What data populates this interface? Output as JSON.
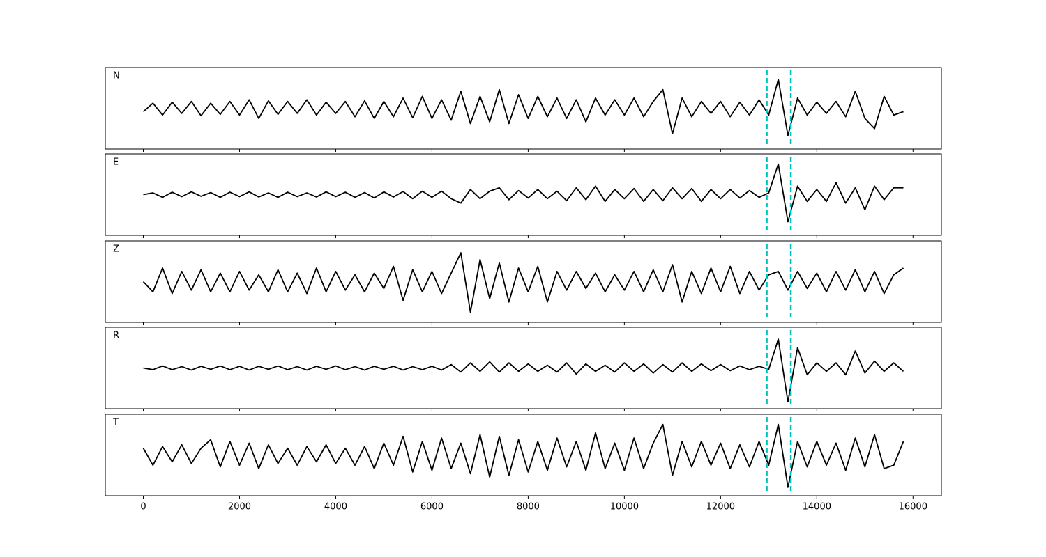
{
  "chart_data": {
    "type": "line",
    "x": [
      0,
      200,
      400,
      600,
      800,
      1000,
      1200,
      1400,
      1600,
      1800,
      2000,
      2200,
      2400,
      2600,
      2800,
      3000,
      3200,
      3400,
      3600,
      3800,
      4000,
      4200,
      4400,
      4600,
      4800,
      5000,
      5200,
      5400,
      5600,
      5800,
      6000,
      6200,
      6400,
      6600,
      6800,
      7000,
      7200,
      7400,
      7600,
      7800,
      8000,
      8200,
      8400,
      8600,
      8800,
      9000,
      9200,
      9400,
      9600,
      9800,
      10000,
      10200,
      10400,
      10600,
      10800,
      11000,
      11200,
      11400,
      11600,
      11800,
      12000,
      12200,
      12400,
      12600,
      12800,
      13000,
      13200,
      13400,
      13600,
      13800,
      14000,
      14200,
      14400,
      14600,
      14800,
      15000,
      15200,
      15400,
      15600,
      15800
    ],
    "xlim": [
      -790,
      16590
    ],
    "xticks": [
      0,
      2000,
      4000,
      6000,
      8000,
      10000,
      12000,
      14000,
      16000
    ],
    "ylim": [
      -1.2,
      1.2
    ],
    "vlines": {
      "x": [
        12960,
        13460
      ],
      "color": "#00bfbf"
    },
    "series": [
      {
        "name": "N",
        "color": "#000000",
        "values": [
          -0.1,
          0.15,
          -0.2,
          0.18,
          -0.15,
          0.2,
          -0.22,
          0.15,
          -0.18,
          0.2,
          -0.2,
          0.25,
          -0.3,
          0.22,
          -0.18,
          0.2,
          -0.15,
          0.25,
          -0.2,
          0.18,
          -0.15,
          0.2,
          -0.25,
          0.22,
          -0.3,
          0.2,
          -0.25,
          0.3,
          -0.28,
          0.35,
          -0.3,
          0.25,
          -0.35,
          0.5,
          -0.45,
          0.35,
          -0.4,
          0.55,
          -0.45,
          0.4,
          -0.3,
          0.35,
          -0.25,
          0.3,
          -0.3,
          0.25,
          -0.4,
          0.3,
          -0.2,
          0.25,
          -0.2,
          0.3,
          -0.25,
          0.2,
          0.55,
          -0.75,
          0.3,
          -0.25,
          0.2,
          -0.15,
          0.2,
          -0.25,
          0.18,
          -0.2,
          0.25,
          -0.2,
          0.85,
          -0.8,
          0.3,
          -0.2,
          0.18,
          -0.15,
          0.2,
          -0.25,
          0.5,
          -0.3,
          -0.6,
          0.35,
          -0.2,
          -0.1
        ]
      },
      {
        "name": "E",
        "color": "#000000",
        "values": [
          0,
          0.05,
          -0.08,
          0.07,
          -0.06,
          0.08,
          -0.05,
          0.06,
          -0.08,
          0.07,
          -0.06,
          0.08,
          -0.07,
          0.05,
          -0.08,
          0.07,
          -0.06,
          0.05,
          -0.07,
          0.08,
          -0.06,
          0.07,
          -0.08,
          0.06,
          -0.1,
          0.08,
          -0.07,
          0.09,
          -0.12,
          0.1,
          -0.08,
          0.1,
          -0.12,
          -0.25,
          0.15,
          -0.12,
          0.1,
          0.2,
          -0.15,
          0.12,
          -0.1,
          0.15,
          -0.12,
          0.1,
          -0.18,
          0.2,
          -0.15,
          0.25,
          -0.2,
          0.15,
          -0.12,
          0.18,
          -0.2,
          0.15,
          -0.18,
          0.2,
          -0.12,
          0.18,
          -0.2,
          0.15,
          -0.12,
          0.15,
          -0.1,
          0.12,
          -0.08,
          0.05,
          0.9,
          -0.8,
          0.25,
          -0.2,
          0.15,
          -0.2,
          0.35,
          -0.25,
          0.2,
          -0.45,
          0.25,
          -0.15,
          0.2,
          0.2
        ]
      },
      {
        "name": "Z",
        "color": "#000000",
        "values": [
          0,
          -0.3,
          0.4,
          -0.35,
          0.3,
          -0.25,
          0.35,
          -0.3,
          0.25,
          -0.3,
          0.3,
          -0.25,
          0.2,
          -0.3,
          0.35,
          -0.3,
          0.25,
          -0.35,
          0.4,
          -0.3,
          0.3,
          -0.25,
          0.2,
          -0.3,
          0.25,
          -0.2,
          0.45,
          -0.55,
          0.35,
          -0.3,
          0.3,
          -0.35,
          0.25,
          0.85,
          -0.9,
          0.65,
          -0.5,
          0.55,
          -0.6,
          0.4,
          -0.3,
          0.45,
          -0.6,
          0.3,
          -0.25,
          0.3,
          -0.2,
          0.25,
          -0.3,
          0.2,
          -0.25,
          0.3,
          -0.3,
          0.35,
          -0.3,
          0.5,
          -0.6,
          0.3,
          -0.35,
          0.4,
          -0.3,
          0.45,
          -0.35,
          0.3,
          -0.25,
          0.2,
          0.3,
          -0.25,
          0.3,
          -0.2,
          0.25,
          -0.3,
          0.3,
          -0.25,
          0.35,
          -0.3,
          0.3,
          -0.35,
          0.2,
          0.4
        ]
      },
      {
        "name": "R",
        "color": "#000000",
        "values": [
          0,
          -0.05,
          0.06,
          -0.05,
          0.04,
          -0.06,
          0.05,
          -0.04,
          0.06,
          -0.05,
          0.05,
          -0.06,
          0.05,
          -0.04,
          0.06,
          -0.05,
          0.04,
          -0.06,
          0.05,
          -0.04,
          0.06,
          -0.05,
          0.04,
          -0.06,
          0.05,
          -0.04,
          0.05,
          -0.06,
          0.04,
          -0.05,
          0.05,
          -0.06,
          0.1,
          -0.12,
          0.15,
          -0.1,
          0.18,
          -0.12,
          0.15,
          -0.1,
          0.12,
          -0.1,
          0.08,
          -0.12,
          0.15,
          -0.18,
          0.12,
          -0.1,
          0.08,
          -0.12,
          0.15,
          -0.1,
          0.12,
          -0.15,
          0.1,
          -0.12,
          0.15,
          -0.1,
          0.12,
          -0.08,
          0.1,
          -0.08,
          0.06,
          -0.05,
          0.05,
          -0.04,
          0.85,
          -1.0,
          0.6,
          -0.2,
          0.15,
          -0.1,
          0.15,
          -0.2,
          0.5,
          -0.15,
          0.2,
          -0.1,
          0.15,
          -0.1
        ]
      },
      {
        "name": "T",
        "color": "#000000",
        "values": [
          0.2,
          -0.3,
          0.25,
          -0.2,
          0.3,
          -0.25,
          0.2,
          0.45,
          -0.35,
          0.4,
          -0.3,
          0.35,
          -0.4,
          0.3,
          -0.25,
          0.2,
          -0.3,
          0.25,
          -0.2,
          0.3,
          -0.25,
          0.2,
          -0.3,
          0.25,
          -0.4,
          0.35,
          -0.3,
          0.55,
          -0.5,
          0.4,
          -0.45,
          0.5,
          -0.4,
          0.35,
          -0.55,
          0.6,
          -0.65,
          0.55,
          -0.6,
          0.45,
          -0.5,
          0.4,
          -0.45,
          0.5,
          -0.35,
          0.4,
          -0.45,
          0.65,
          -0.4,
          0.35,
          -0.45,
          0.5,
          -0.4,
          0.35,
          0.9,
          -0.6,
          0.4,
          -0.35,
          0.4,
          -0.3,
          0.35,
          -0.4,
          0.3,
          -0.35,
          0.4,
          -0.3,
          0.9,
          -0.95,
          0.4,
          -0.35,
          0.4,
          -0.3,
          0.35,
          -0.45,
          0.5,
          -0.35,
          0.6,
          -0.4,
          -0.3,
          0.4
        ]
      }
    ]
  }
}
